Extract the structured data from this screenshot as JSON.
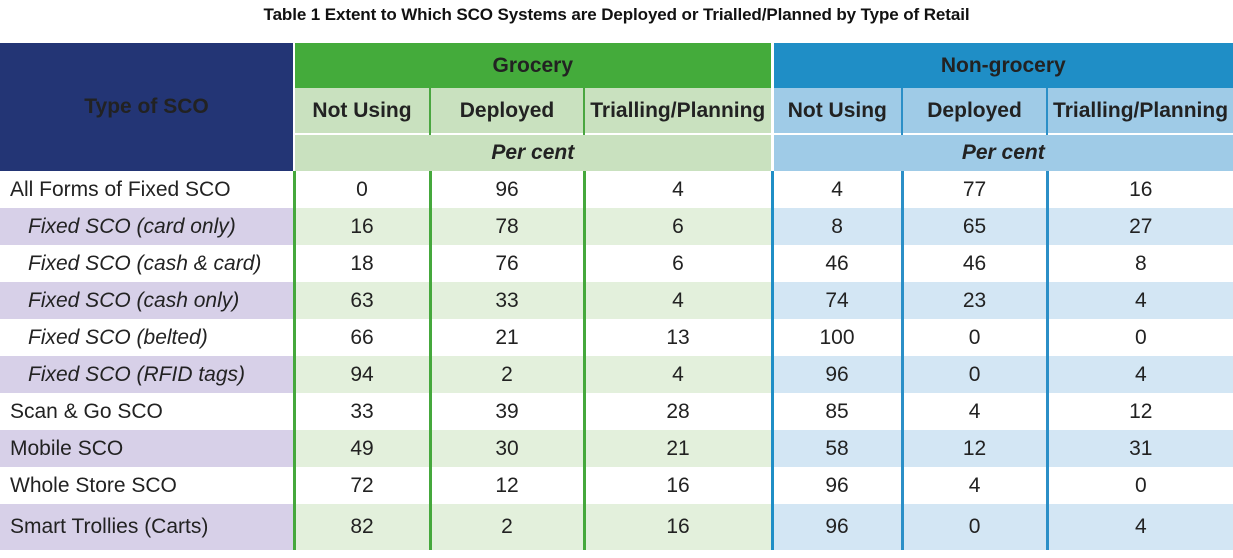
{
  "title": "Table 1 Extent to Which SCO Systems are Deployed or Trialled/Planned by Type of Retail",
  "header": {
    "type_label": "Type of SCO",
    "groups": [
      {
        "label": "Grocery",
        "columns": [
          "Not Using",
          "Deployed",
          "Trialling/Planning"
        ],
        "unit": "Per cent"
      },
      {
        "label": "Non-grocery",
        "columns": [
          "Not Using",
          "Deployed",
          "Trialling/Planning"
        ],
        "unit": "Per cent"
      }
    ]
  },
  "rows": [
    {
      "label": "All Forms of Fixed SCO",
      "indent": false,
      "values": [
        "0",
        "96",
        "4",
        "4",
        "77",
        "16"
      ]
    },
    {
      "label": "Fixed SCO (card only)",
      "indent": true,
      "values": [
        "16",
        "78",
        "6",
        "8",
        "65",
        "27"
      ]
    },
    {
      "label": "Fixed SCO (cash & card)",
      "indent": true,
      "values": [
        "18",
        "76",
        "6",
        "46",
        "46",
        "8"
      ]
    },
    {
      "label": "Fixed SCO (cash only)",
      "indent": true,
      "values": [
        "63",
        "33",
        "4",
        "74",
        "23",
        "4"
      ]
    },
    {
      "label": "Fixed SCO (belted)",
      "indent": true,
      "values": [
        "66",
        "21",
        "13",
        "100",
        "0",
        "0"
      ]
    },
    {
      "label": "Fixed SCO (RFID tags)",
      "indent": true,
      "values": [
        "94",
        "2",
        "4",
        "96",
        "0",
        "4"
      ]
    },
    {
      "label": "Scan & Go SCO",
      "indent": false,
      "values": [
        "33",
        "39",
        "28",
        "85",
        "4",
        "12"
      ]
    },
    {
      "label": "Mobile SCO",
      "indent": false,
      "values": [
        "49",
        "30",
        "21",
        "58",
        "12",
        "31"
      ]
    },
    {
      "label": "Whole Store SCO",
      "indent": false,
      "values": [
        "72",
        "12",
        "16",
        "96",
        "4",
        "0"
      ]
    },
    {
      "label": "Smart Trollies (Carts)",
      "indent": false,
      "values": [
        "82",
        "2",
        "16",
        "96",
        "0",
        "4"
      ]
    }
  ],
  "colors": {
    "type_header_bg": "#233575",
    "grocery_header_bg": "#44ab3b",
    "grocery_sub_bg": "#c9e1bf",
    "nongrocery_header_bg": "#1f8ec6",
    "nongrocery_sub_bg": "#9fcbe7",
    "label_stripe_bg": "#d7d0e8"
  }
}
